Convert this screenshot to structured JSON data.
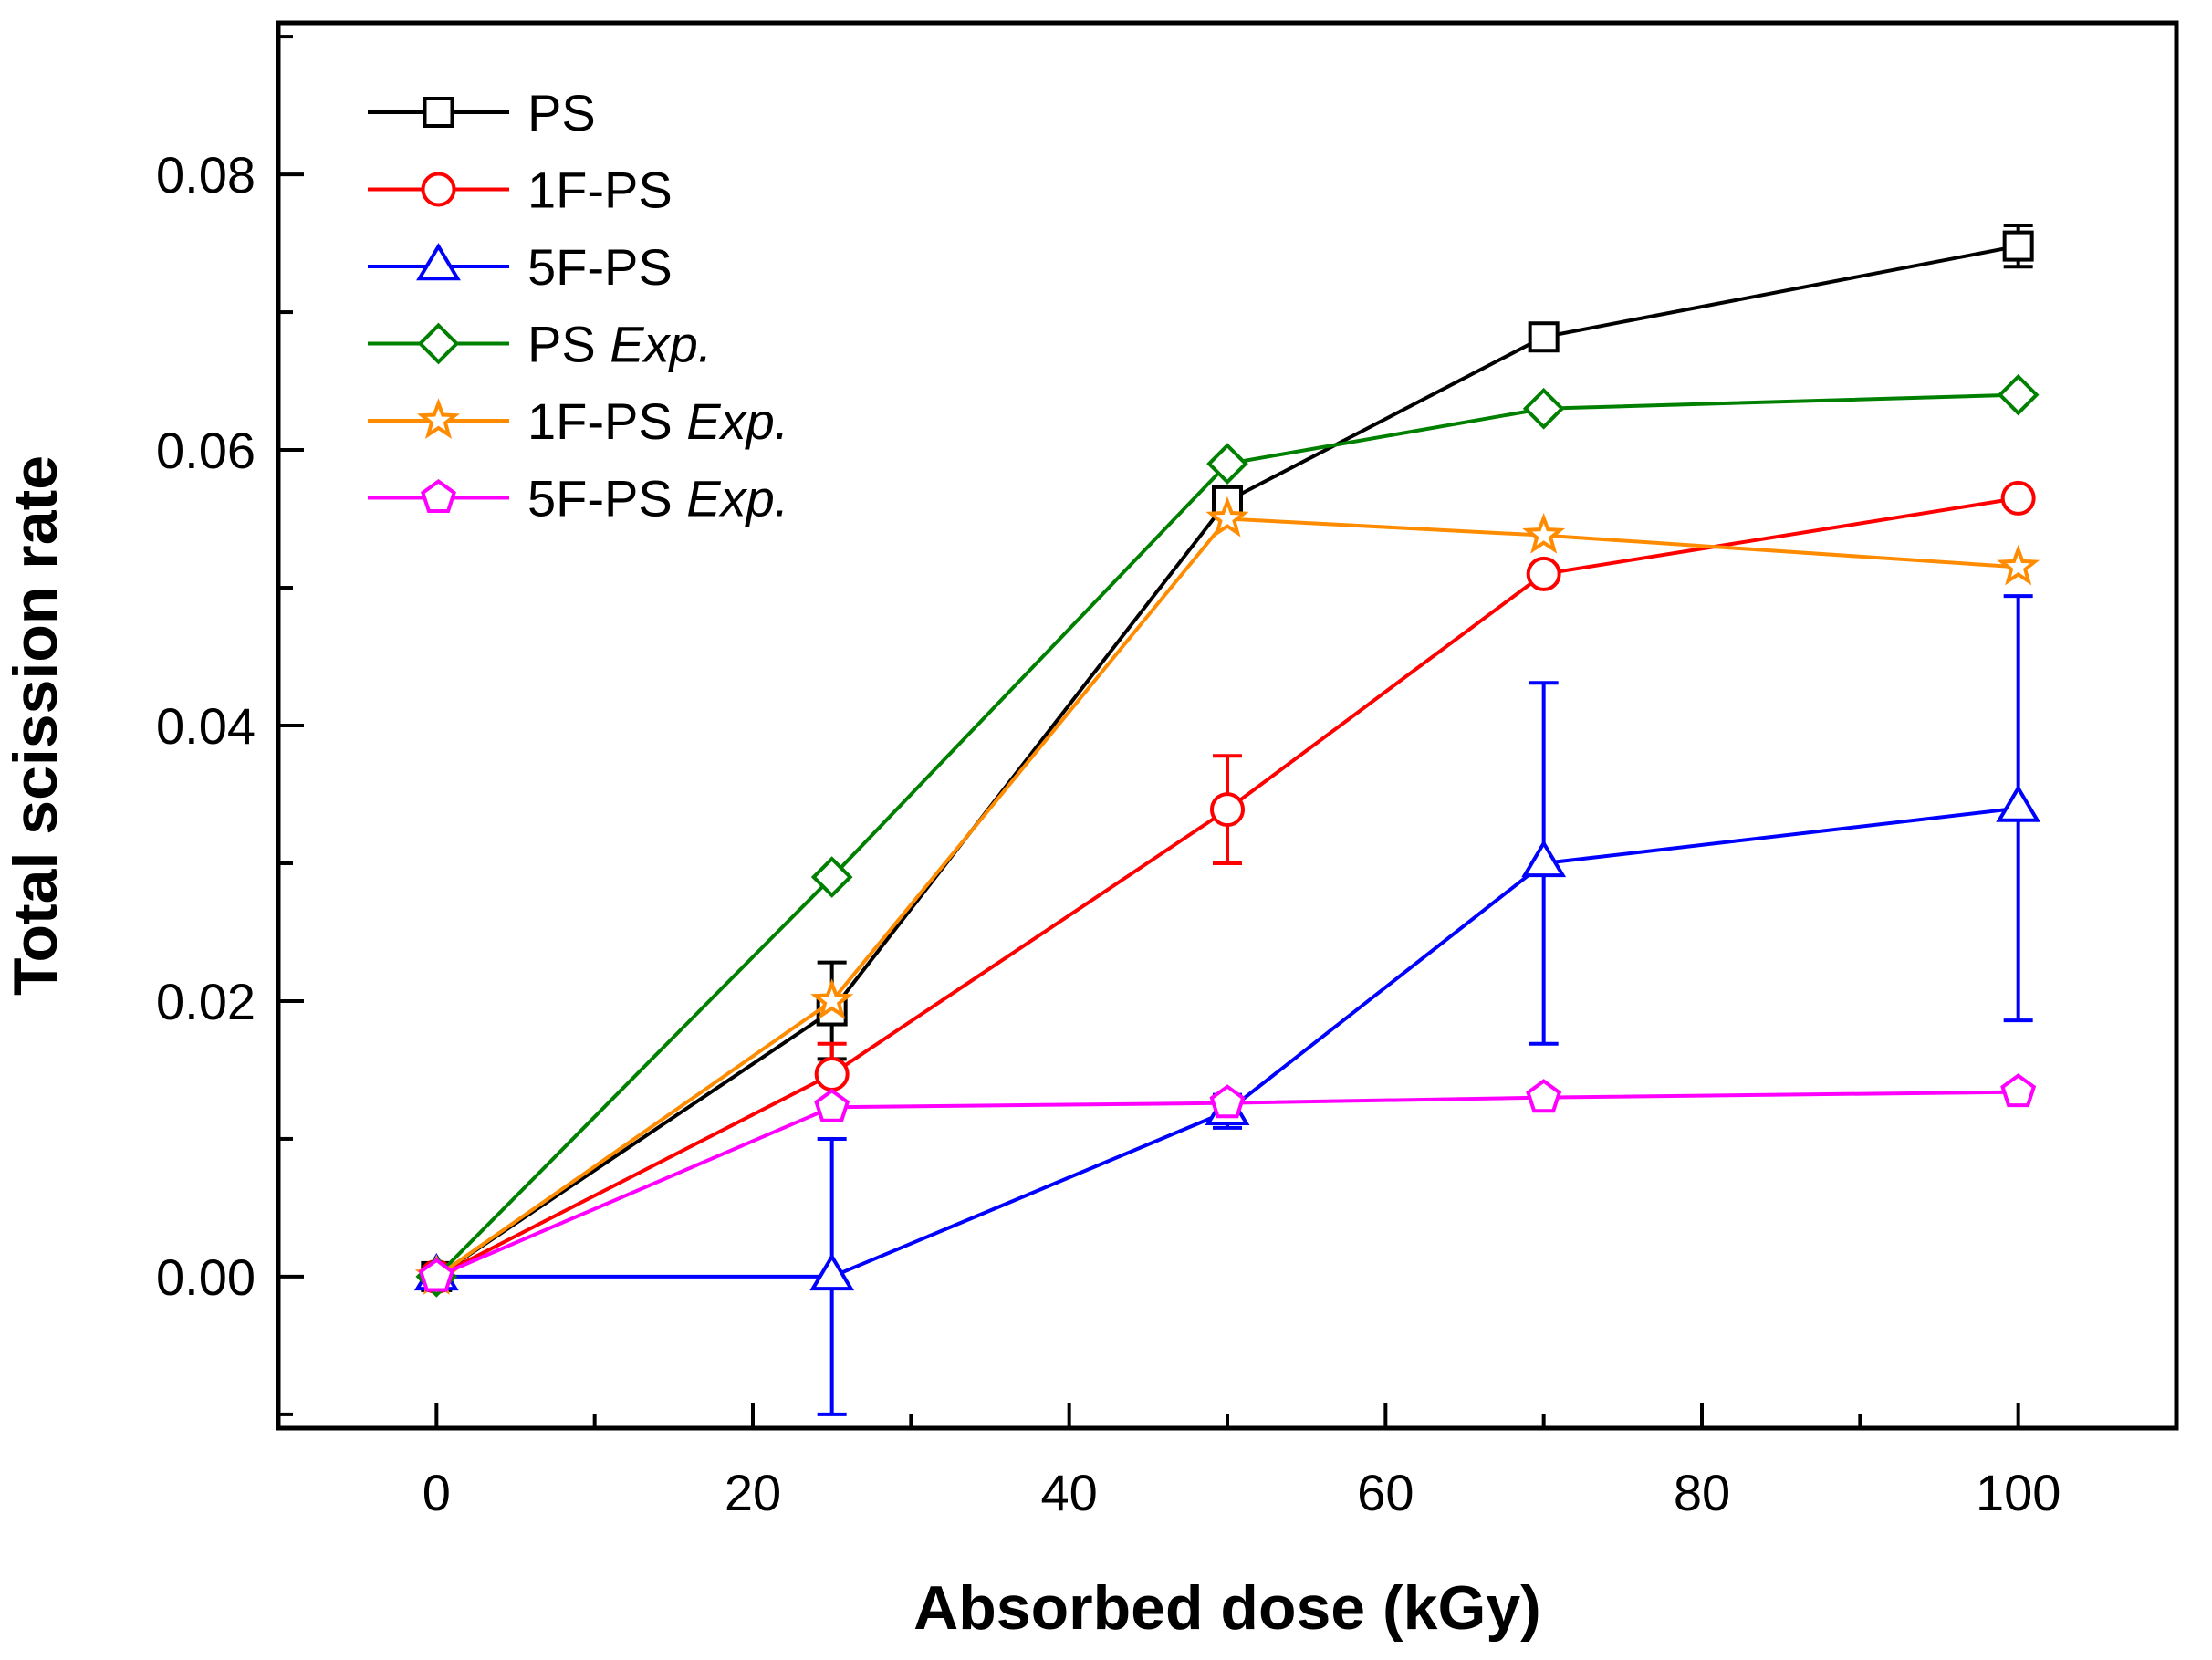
{
  "chart_data": {
    "type": "line",
    "title": "",
    "xlabel": "Absorbed dose (kGy)",
    "ylabel": "Total scission rate",
    "xlim": [
      -10,
      110
    ],
    "ylim": [
      -0.011,
      0.091
    ],
    "x_ticks": [
      0,
      20,
      40,
      60,
      80,
      100
    ],
    "x_minor_ticks": [
      10,
      30,
      50,
      70,
      90
    ],
    "y_ticks": [
      0.0,
      0.02,
      0.04,
      0.06,
      0.08
    ],
    "x_tick_labels": [
      "0",
      "20",
      "40",
      "60",
      "80",
      "100"
    ],
    "y_tick_labels": [
      "0.00",
      "0.02",
      "0.04",
      "0.06",
      "0.08"
    ],
    "grid": false,
    "legend_position": "top-left",
    "x": [
      0,
      25,
      50,
      70,
      100
    ],
    "series": [
      {
        "name": "PS",
        "name_main": "PS",
        "name_suffix": "",
        "color": "#000000",
        "marker": "square",
        "values": [
          0.0,
          0.0193,
          0.0563,
          0.0682,
          0.0748
        ],
        "errors": [
          0.0,
          0.0035,
          0.0005,
          0.0006,
          0.0015
        ]
      },
      {
        "name": "1F-PS",
        "name_main": "1F-PS",
        "name_suffix": "",
        "color": "#ff0000",
        "marker": "circle",
        "values": [
          0.0,
          0.0147,
          0.0339,
          0.051,
          0.0565
        ],
        "errors": [
          0.0,
          0.0022,
          0.0039,
          0.0006,
          0.0006
        ]
      },
      {
        "name": "5F-PS",
        "name_main": "5F-PS",
        "name_suffix": "",
        "color": "#0000ff",
        "marker": "triangle",
        "values": [
          0.0,
          0.0,
          0.012,
          0.03,
          0.034
        ],
        "errors": [
          0.0,
          0.01,
          0.0012,
          0.0131,
          0.0154
        ]
      },
      {
        "name": "PS Exp.",
        "name_main": "PS ",
        "name_suffix": "Exp.",
        "color": "#008000",
        "marker": "diamond",
        "values": [
          0.0,
          0.029,
          0.059,
          0.063,
          0.064
        ],
        "errors": []
      },
      {
        "name": "1F-PS Exp.",
        "name_main": "1F-PS ",
        "name_suffix": "Exp.",
        "color": "#ff8c00",
        "marker": "star",
        "values": [
          0.0,
          0.02,
          0.055,
          0.0538,
          0.0515
        ],
        "errors": []
      },
      {
        "name": "5F-PS Exp.",
        "name_main": "5F-PS ",
        "name_suffix": "Exp.",
        "color": "#ff00ff",
        "marker": "pentagon",
        "values": [
          0.0,
          0.0123,
          0.0126,
          0.013,
          0.0134
        ],
        "errors": []
      }
    ]
  }
}
